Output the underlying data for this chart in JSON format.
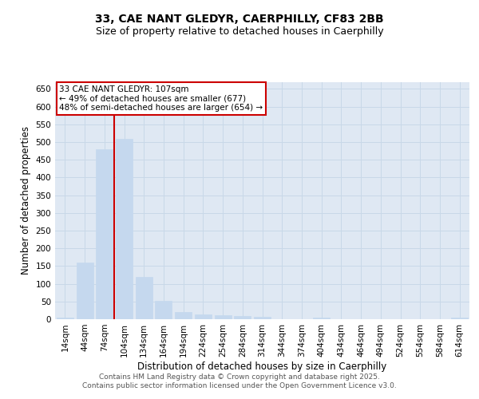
{
  "title1": "33, CAE NANT GLEDYR, CAERPHILLY, CF83 2BB",
  "title2": "Size of property relative to detached houses in Caerphilly",
  "xlabel": "Distribution of detached houses by size in Caerphilly",
  "ylabel": "Number of detached properties",
  "categories": [
    "14sqm",
    "44sqm",
    "74sqm",
    "104sqm",
    "134sqm",
    "164sqm",
    "194sqm",
    "224sqm",
    "254sqm",
    "284sqm",
    "314sqm",
    "344sqm",
    "374sqm",
    "404sqm",
    "434sqm",
    "464sqm",
    "494sqm",
    "524sqm",
    "554sqm",
    "584sqm",
    "614sqm"
  ],
  "values": [
    5,
    160,
    480,
    510,
    120,
    52,
    20,
    13,
    11,
    8,
    6,
    0,
    0,
    5,
    0,
    0,
    0,
    0,
    0,
    0,
    5
  ],
  "bar_color": "#c5d8ee",
  "bar_edgecolor": "#c5d8ee",
  "ylim": [
    0,
    670
  ],
  "yticks": [
    0,
    50,
    100,
    150,
    200,
    250,
    300,
    350,
    400,
    450,
    500,
    550,
    600,
    650
  ],
  "vline_bar_index": 3,
  "annotation_text": "33 CAE NANT GLEDYR: 107sqm\n← 49% of detached houses are smaller (677)\n48% of semi-detached houses are larger (654) →",
  "annotation_box_color": "#ffffff",
  "annotation_box_edgecolor": "#cc0000",
  "vline_color": "#cc0000",
  "grid_color": "#c8d8e8",
  "background_color": "#dfe8f3",
  "footer_text": "Contains HM Land Registry data © Crown copyright and database right 2025.\nContains public sector information licensed under the Open Government Licence v3.0.",
  "title_fontsize": 10,
  "subtitle_fontsize": 9,
  "axis_label_fontsize": 8.5,
  "tick_fontsize": 7.5,
  "annotation_fontsize": 7.5,
  "footer_fontsize": 6.5
}
